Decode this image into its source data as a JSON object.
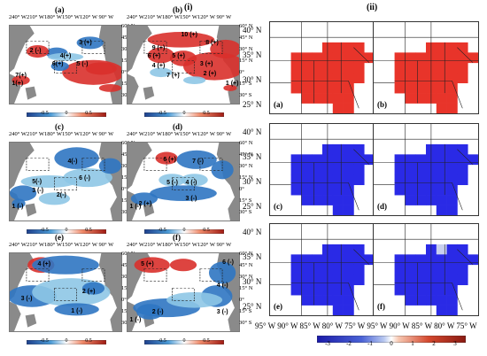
{
  "section_labels": {
    "left": "(i)",
    "right": "(ii)"
  },
  "left_panels": [
    {
      "label": "(a)",
      "lon_ticks": "240° W210° W180° W150° W120° W 90° W",
      "lat_ticks": [
        "60° N",
        "45° N",
        "30° N",
        "15° N",
        "0°",
        "15° S",
        "30° S"
      ],
      "regions": [
        "2 (-)",
        "3 (+)",
        "4(+)",
        "5 (-)",
        "6(+)",
        "7(+)",
        "1(+)"
      ],
      "colorbar_ticks": [
        "-0.5",
        "0",
        "0.5"
      ]
    },
    {
      "label": "(b)",
      "lon_ticks": "240° W210° W180° W150° W120° W 90° W",
      "lat_ticks": [
        "60° N",
        "45° N",
        "30° N",
        "15° N",
        "0°",
        "15° S",
        "30° S"
      ],
      "regions": [
        "10 (+)",
        "8 (+)",
        "9 (+)",
        "6 (+)",
        "5 (+)",
        "3 (+)",
        "4 (+)",
        "2 (+)",
        "7 (+)",
        "1 (+)"
      ],
      "colorbar_ticks": [
        "-0.5",
        "0",
        "0.5"
      ]
    },
    {
      "label": "(c)",
      "lon_ticks": "240° W210° W180° W150° W120° W 90° W",
      "lat_ticks": [
        "60° N",
        "45° N",
        "30° N",
        "15° N",
        "0°",
        "15° S",
        "30° S"
      ],
      "regions": [
        "4(-)",
        "6 (-)",
        "5(-)",
        "3 (-)",
        "2(-)",
        "1 (-)"
      ],
      "colorbar_ticks": [
        "-0.5",
        "0",
        "0.5"
      ]
    },
    {
      "label": "(d)",
      "lon_ticks": "240° W210° W180° W150° W120° W 90° W",
      "lat_ticks": [
        "60° N",
        "45° N",
        "30° N",
        "15° N",
        "0°",
        "15° S",
        "30° S"
      ],
      "regions": [
        "6 (+)",
        "7 (-)",
        "5 (-)",
        "4 (-)",
        "3 (-)",
        "2 (+)",
        "1 (-)"
      ],
      "colorbar_ticks": [
        "-0.5",
        "0",
        "0.5"
      ]
    },
    {
      "label": "(e)",
      "lon_ticks": "240° W210° W180° W150° W120° W 90° W",
      "lat_ticks": [
        "60° N",
        "45° N",
        "30° N",
        "15° N",
        "0°",
        "15° S",
        "30° S"
      ],
      "regions": [
        "4 (+)",
        "3 (-)",
        "2 (+)",
        "1 (-)"
      ],
      "colorbar_ticks": [
        "-0.5",
        "0",
        "0.5"
      ]
    },
    {
      "label": "(f)",
      "lon_ticks": "240° W210° W180° W150° W120° W 90° W",
      "lat_ticks": [
        "60° N",
        "45° N",
        "30° N",
        "15° N",
        "0°",
        "15° S",
        "30° S"
      ],
      "regions": [
        "5 (+)",
        "6 (-)",
        "4 (-)",
        "3 (-)",
        "2 (-)",
        "1 (-)"
      ],
      "colorbar_ticks": [
        "-0.5",
        "0",
        "0.5"
      ]
    }
  ],
  "right_panels": [
    {
      "label": "(a)",
      "fill": "#e8342a"
    },
    {
      "label": "(b)",
      "fill": "#e8342a"
    },
    {
      "label": "(c)",
      "fill": "#2a2ae6"
    },
    {
      "label": "(d)",
      "fill": "#2a2ae6"
    },
    {
      "label": "(e)",
      "fill": "#2a2ae6"
    },
    {
      "label": "(f)",
      "fill": "#2a2ae6"
    }
  ],
  "right_lat_ticks": [
    "40° N",
    "35° N",
    "30° N",
    "25° N"
  ],
  "right_lon_ticks": "95° W 90° W 85° W 80° W 75° W  95° W 90° W 85° W 80° W 75° W",
  "right_colorbar_ticks": [
    "-3",
    "-2",
    "-1",
    "0",
    "1",
    "2",
    "3"
  ],
  "colors": {
    "land": "#8a8a8a",
    "pos": "#d9302b",
    "neg": "#2f76c2",
    "light_neg": "#8ec7e6",
    "light_pos": "#f3a38f"
  }
}
